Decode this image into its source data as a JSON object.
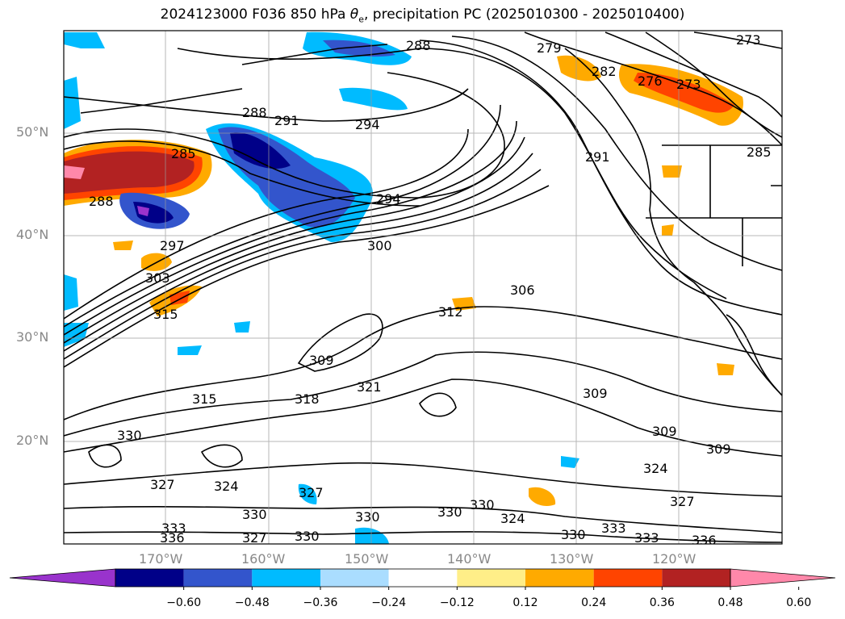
{
  "title": {
    "prefix": "2024123000 F036 850 hPa ",
    "theta": "θ",
    "sub": "e",
    "suffix": ", precipitation PC (2025010300 - 2025010400)"
  },
  "axes": {
    "lat_ticks": [
      "50°N",
      "40°N",
      "30°N",
      "20°N"
    ],
    "lon_ticks": [
      "170°W",
      "160°W",
      "150°W",
      "140°W",
      "130°W",
      "120°W"
    ]
  },
  "contour_labels": [
    "288",
    "291",
    "294",
    "285",
    "288",
    "297",
    "303",
    "315",
    "294",
    "300",
    "306",
    "312",
    "309",
    "318",
    "321",
    "315",
    "330",
    "327",
    "324",
    "327",
    "330",
    "330",
    "330",
    "330",
    "324",
    "330",
    "327",
    "333",
    "336",
    "309",
    "309",
    "309",
    "324",
    "327",
    "333",
    "336",
    "279",
    "282",
    "276",
    "273",
    "273",
    "285",
    "291",
    "288",
    "330",
    "333"
  ],
  "colorbar": {
    "ticks": [
      "−0.60",
      "−0.48",
      "−0.36",
      "−0.24",
      "−0.12",
      "0.12",
      "0.24",
      "0.36",
      "0.48",
      "0.60"
    ],
    "colors": [
      "#9933cc",
      "#000088",
      "#3355cc",
      "#00bbff",
      "#aaddff",
      "#ffffff",
      "#ffee88",
      "#ffaa00",
      "#ff4400",
      "#b22222",
      "#ff88aa"
    ]
  }
}
